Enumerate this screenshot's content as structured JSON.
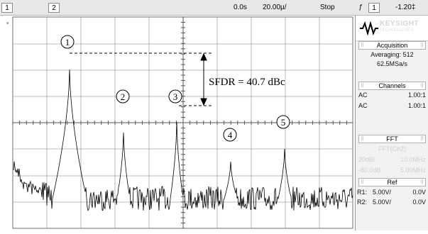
{
  "topbar": {
    "channel1": "1",
    "channel2": "2",
    "time_delay": "0.0s",
    "time_per_div": "20.00µ/",
    "run_state": "Stop",
    "trigger_symbol": "ƒ",
    "trigger_channel": "1",
    "trigger_level": "-1.20‡"
  },
  "plot": {
    "screen_marker": "▾",
    "sfdr_annotation": "SFDR = 40.7 dBc",
    "markers": [
      "1",
      "2",
      "3",
      "4",
      "5"
    ]
  },
  "panel": {
    "brand": "KEYSIGHT",
    "brand_sub": "TECHNOLOGIES",
    "acquisition": {
      "title": "Acquisition",
      "mode": "Averaging: 512",
      "sample_rate": "62.5MSa/s"
    },
    "channels": {
      "title": "Channels",
      "rows": [
        {
          "coupling": "AC",
          "ratio": "1.00:1"
        },
        {
          "coupling": "AC",
          "ratio": "1.00:1"
        }
      ]
    },
    "fft": {
      "title": "FFT",
      "source": "FFT(Ch2)",
      "scale": "20dB/",
      "center_freq": "10.0MHz",
      "offset": "-80.0dB",
      "span_freq": "5.00MHz"
    },
    "ref": {
      "title": "Ref",
      "rows": [
        {
          "label": "R1:",
          "scale": "5.00V/",
          "offset": "0.0V"
        },
        {
          "label": "R2:",
          "scale": "5.00V/",
          "offset": "0.0V"
        }
      ]
    }
  },
  "colors": {
    "trace": "#000000",
    "grid": "#9a9a9a",
    "background": "#ffffff",
    "logo_mark": "#000000"
  }
}
